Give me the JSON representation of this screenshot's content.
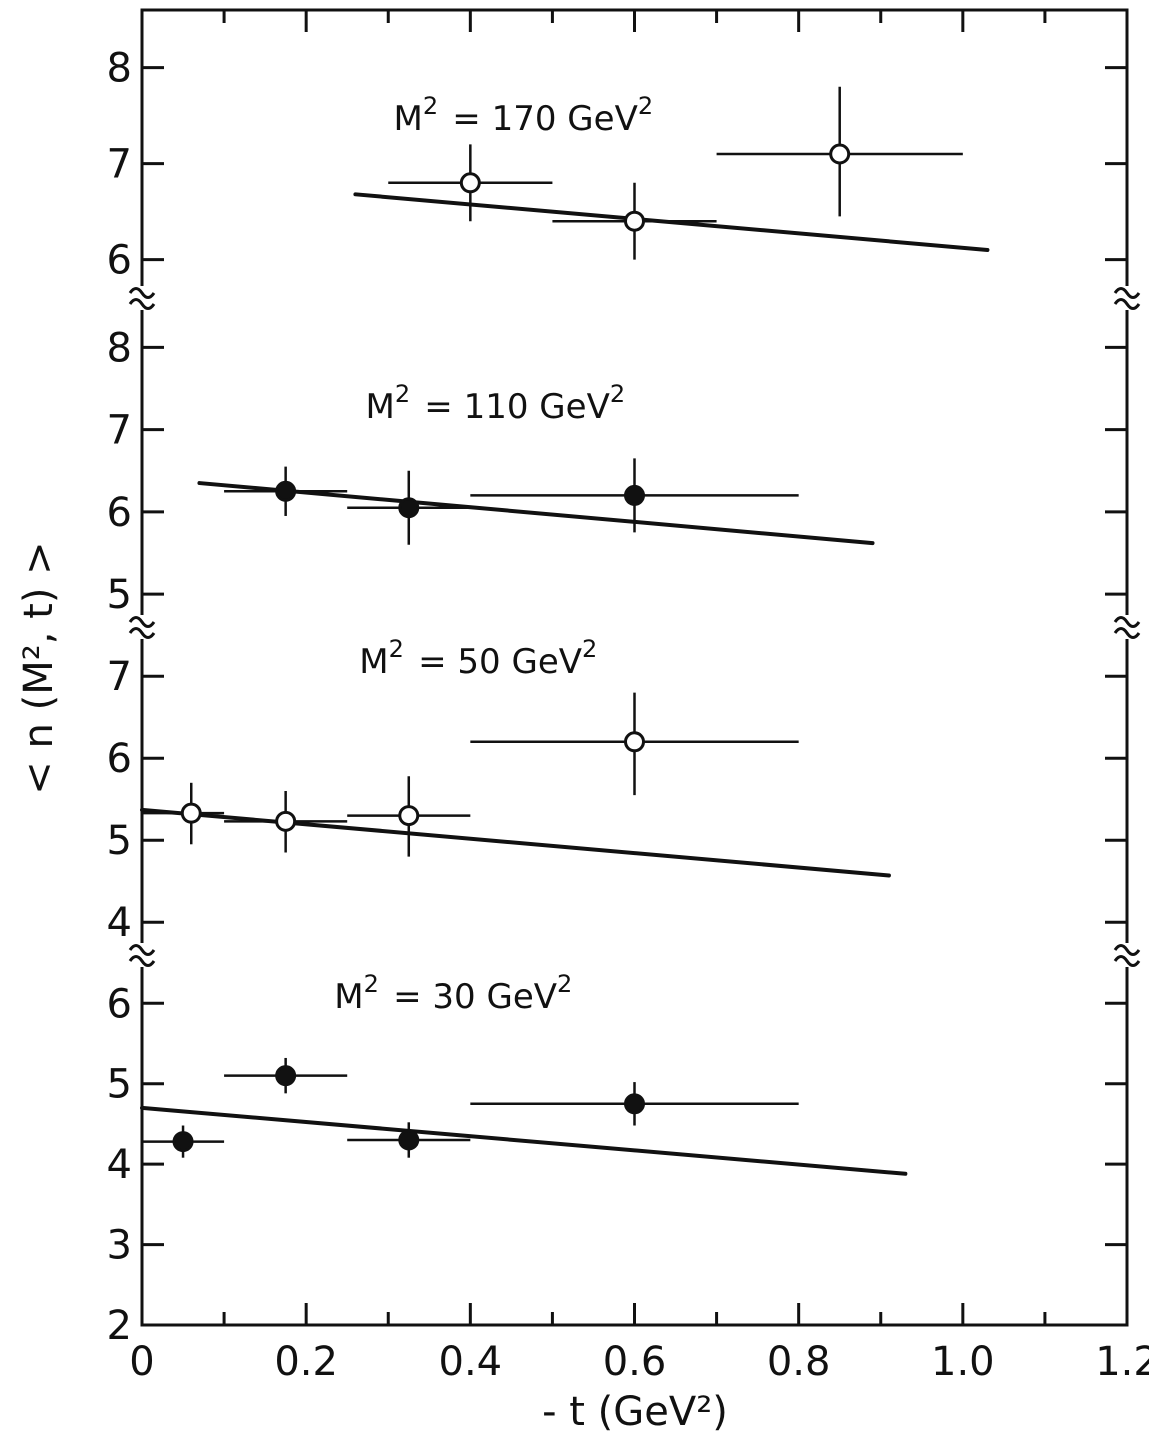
{
  "chart_data": {
    "type": "scatter",
    "xlabel": "- t (GeV²)",
    "ylabel": "< n (M², t) >",
    "xlim": [
      0,
      1.2
    ],
    "x_ticks": [
      "0",
      "0.2",
      "0.4",
      "0.6",
      "0.8",
      "1.0",
      "1.2"
    ],
    "grid": false,
    "panels": [
      {
        "label": "M² = 170 GeV²",
        "ylim": [
          5.6,
          8.6
        ],
        "y_ticks": [
          "6",
          "7",
          "8"
        ],
        "marker": "open",
        "points": [
          {
            "x": 0.4,
            "y": 6.8,
            "xmin": 0.3,
            "xmax": 0.5,
            "ymin": 6.4,
            "ymax": 7.2
          },
          {
            "x": 0.6,
            "y": 6.4,
            "xmin": 0.5,
            "xmax": 0.7,
            "ymin": 6.0,
            "ymax": 6.8
          },
          {
            "x": 0.85,
            "y": 7.1,
            "xmin": 0.7,
            "xmax": 1.0,
            "ymin": 6.45,
            "ymax": 7.8
          }
        ],
        "fit": {
          "x": [
            0.26,
            1.03
          ],
          "y": [
            6.68,
            6.1
          ]
        }
      },
      {
        "label": "M² = 110 GeV²",
        "ylim": [
          4.6,
          8.6
        ],
        "y_ticks": [
          "5",
          "6",
          "7",
          "8"
        ],
        "marker": "filled",
        "points": [
          {
            "x": 0.175,
            "y": 6.25,
            "xmin": 0.1,
            "xmax": 0.25,
            "ymin": 5.95,
            "ymax": 6.55
          },
          {
            "x": 0.325,
            "y": 6.05,
            "xmin": 0.25,
            "xmax": 0.4,
            "ymin": 5.6,
            "ymax": 6.5
          },
          {
            "x": 0.6,
            "y": 6.2,
            "xmin": 0.4,
            "xmax": 0.8,
            "ymin": 5.75,
            "ymax": 6.65
          }
        ],
        "fit": {
          "x": [
            0.07,
            0.89
          ],
          "y": [
            6.35,
            5.62
          ]
        }
      },
      {
        "label": "M² = 50 GeV²",
        "ylim": [
          3.6,
          7.6
        ],
        "y_ticks": [
          "4",
          "5",
          "6",
          "7"
        ],
        "marker": "open",
        "points": [
          {
            "x": 0.06,
            "y": 5.33,
            "xmin": 0.0,
            "xmax": 0.1,
            "ymin": 4.95,
            "ymax": 5.7
          },
          {
            "x": 0.175,
            "y": 5.23,
            "xmin": 0.1,
            "xmax": 0.25,
            "ymin": 4.85,
            "ymax": 5.6
          },
          {
            "x": 0.325,
            "y": 5.3,
            "xmin": 0.25,
            "xmax": 0.4,
            "ymin": 4.8,
            "ymax": 5.78
          },
          {
            "x": 0.6,
            "y": 6.2,
            "xmin": 0.4,
            "xmax": 0.8,
            "ymin": 5.55,
            "ymax": 6.8
          }
        ],
        "fit": {
          "x": [
            0.0,
            0.91
          ],
          "y": [
            5.37,
            4.57
          ]
        }
      },
      {
        "label": "M² = 30 GeV²",
        "ylim": [
          2.0,
          6.6
        ],
        "y_ticks": [
          "2",
          "3",
          "4",
          "5",
          "6"
        ],
        "marker": "filled",
        "points": [
          {
            "x": 0.05,
            "y": 4.28,
            "xmin": 0.0,
            "xmax": 0.1,
            "ymin": 4.08,
            "ymax": 4.48
          },
          {
            "x": 0.175,
            "y": 5.1,
            "xmin": 0.1,
            "xmax": 0.25,
            "ymin": 4.88,
            "ymax": 5.32
          },
          {
            "x": 0.325,
            "y": 4.3,
            "xmin": 0.25,
            "xmax": 0.4,
            "ymin": 4.08,
            "ymax": 4.52
          },
          {
            "x": 0.6,
            "y": 4.75,
            "xmin": 0.4,
            "xmax": 0.8,
            "ymin": 4.48,
            "ymax": 5.02
          }
        ],
        "fit": {
          "x": [
            0.0,
            0.93
          ],
          "y": [
            4.7,
            3.88
          ]
        }
      }
    ]
  }
}
